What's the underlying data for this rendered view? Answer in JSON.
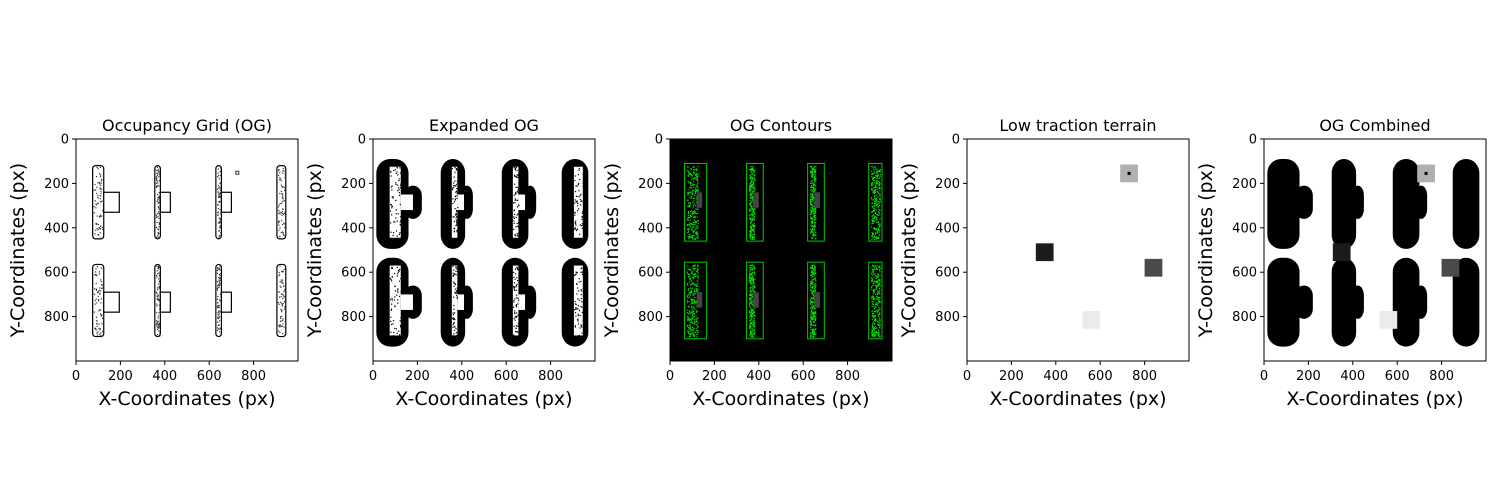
{
  "chart_data": [
    {
      "type": "heatmap",
      "title": "Occupancy Grid (OG)",
      "xlabel": "X-Coordinates (px)",
      "ylabel": "Y-Coordinates (px)",
      "xlim": [
        0,
        1000
      ],
      "ylim": [
        1000,
        0
      ],
      "xticks": [
        "0",
        "200",
        "400",
        "600",
        "800"
      ],
      "yticks": [
        "0",
        "200",
        "400",
        "600",
        "800"
      ],
      "xtick_values": [
        0,
        200,
        400,
        600,
        800
      ],
      "ytick_values": [
        0,
        200,
        400,
        600,
        800
      ],
      "background": "#ffffff",
      "foreground": "#000000",
      "style": "outline"
    },
    {
      "type": "heatmap",
      "title": "Expanded OG",
      "xlabel": "X-Coordinates (px)",
      "ylabel": "Y-Coordinates (px)",
      "xlim": [
        0,
        1000
      ],
      "ylim": [
        1000,
        0
      ],
      "xticks": [
        "0",
        "200",
        "400",
        "600",
        "800"
      ],
      "yticks": [
        "0",
        "200",
        "400",
        "600",
        "800"
      ],
      "xtick_values": [
        0,
        200,
        400,
        600,
        800
      ],
      "ytick_values": [
        0,
        200,
        400,
        600,
        800
      ],
      "background": "#ffffff",
      "foreground": "#000000",
      "style": "expanded"
    },
    {
      "type": "heatmap",
      "title": "OG Contours",
      "xlabel": "X-Coordinates (px)",
      "ylabel": "Y-Coordinates (px)",
      "xlim": [
        0,
        1000
      ],
      "ylim": [
        1000,
        0
      ],
      "xticks": [
        "0",
        "200",
        "400",
        "600",
        "800"
      ],
      "yticks": [
        "0",
        "200",
        "400",
        "600",
        "800"
      ],
      "xtick_values": [
        0,
        200,
        400,
        600,
        800
      ],
      "ytick_values": [
        0,
        200,
        400,
        600,
        800
      ],
      "background": "#000000",
      "foreground": "#00dd00",
      "style": "contours"
    },
    {
      "type": "heatmap",
      "title": "Low traction terrain",
      "xlabel": "X-Coordinates (px)",
      "ylabel": "Y-Coordinates (px)",
      "xlim": [
        0,
        1000
      ],
      "ylim": [
        1000,
        0
      ],
      "xticks": [
        "0",
        "200",
        "400",
        "600",
        "800"
      ],
      "yticks": [
        "0",
        "200",
        "400",
        "600",
        "800"
      ],
      "xtick_values": [
        0,
        200,
        400,
        600,
        800
      ],
      "ytick_values": [
        0,
        200,
        400,
        600,
        800
      ],
      "background": "#ffffff",
      "style": "terrain",
      "patches": [
        {
          "x": 730,
          "y": 155,
          "size": 80,
          "color": "#b0b0b0",
          "center_dot": true
        },
        {
          "x": 350,
          "y": 510,
          "size": 80,
          "color": "#1c1c1c"
        },
        {
          "x": 840,
          "y": 580,
          "size": 80,
          "color": "#4a4a4a"
        },
        {
          "x": 560,
          "y": 815,
          "size": 80,
          "color": "#ebebeb"
        }
      ]
    },
    {
      "type": "heatmap",
      "title": "OG Combined",
      "xlabel": "X-Coordinates (px)",
      "ylabel": "Y-Coordinates (px)",
      "xlim": [
        0,
        1000
      ],
      "ylim": [
        1000,
        0
      ],
      "xticks": [
        "0",
        "200",
        "400",
        "600",
        "800"
      ],
      "yticks": [
        "0",
        "200",
        "400",
        "600",
        "800"
      ],
      "xtick_values": [
        0,
        200,
        400,
        600,
        800
      ],
      "ytick_values": [
        0,
        200,
        400,
        600,
        800
      ],
      "background": "#ffffff",
      "foreground": "#000000",
      "style": "combined"
    }
  ]
}
